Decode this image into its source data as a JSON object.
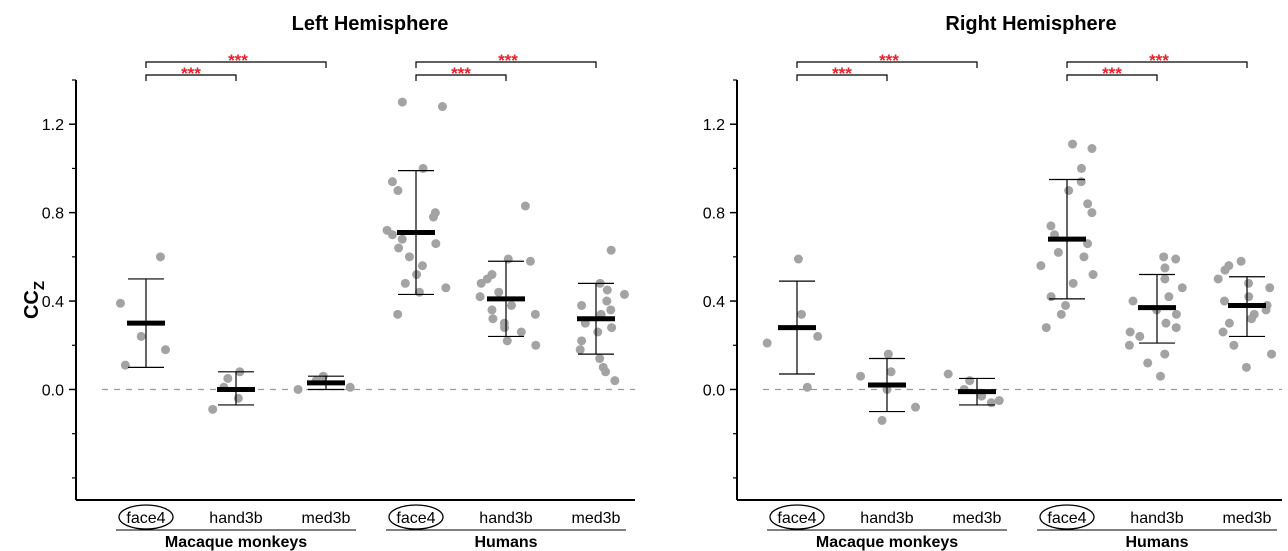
{
  "ylabel_main": "CC",
  "ylabel_sub": "Z",
  "significance_label": "***",
  "colors": {
    "dots": "#a3a3a3",
    "mean": "#000000",
    "stars": "#e8202a",
    "zero_line": "#9a9a9a"
  },
  "chart_data": [
    {
      "type": "scatter",
      "title": "Left Hemisphere",
      "ylim": [
        -0.5,
        1.4
      ],
      "yticks": [
        "0.0",
        "0.4",
        "0.8",
        "1.2"
      ],
      "ytick_values": [
        0.0,
        0.4,
        0.8,
        1.2
      ],
      "groups": [
        "Macaque monkeys",
        "Humans"
      ],
      "categories": [
        "face4",
        "hand3b",
        "med3b",
        "face4",
        "hand3b",
        "med3b"
      ],
      "circled": [
        true,
        false,
        false,
        true,
        false,
        false
      ],
      "means": [
        0.3,
        0.0,
        0.03,
        0.71,
        0.41,
        0.32
      ],
      "sd_upper": [
        0.5,
        0.08,
        0.06,
        0.99,
        0.58,
        0.48
      ],
      "sd_lower": [
        0.1,
        -0.07,
        0.0,
        0.43,
        0.24,
        0.16
      ],
      "points": [
        [
          0.6,
          0.39,
          0.24,
          0.18,
          0.11
        ],
        [
          0.08,
          0.05,
          0.01,
          -0.04,
          -0.09
        ],
        [
          0.06,
          0.04,
          0.01,
          0.0
        ],
        [
          1.3,
          1.28,
          1.0,
          0.94,
          0.9,
          0.8,
          0.78,
          0.72,
          0.7,
          0.68,
          0.66,
          0.64,
          0.6,
          0.56,
          0.52,
          0.48,
          0.46,
          0.44,
          0.34
        ],
        [
          0.83,
          0.59,
          0.58,
          0.52,
          0.5,
          0.48,
          0.44,
          0.42,
          0.38,
          0.36,
          0.34,
          0.32,
          0.3,
          0.28,
          0.26,
          0.22,
          0.2
        ],
        [
          0.63,
          0.48,
          0.45,
          0.43,
          0.4,
          0.38,
          0.36,
          0.34,
          0.3,
          0.28,
          0.26,
          0.22,
          0.18,
          0.14,
          0.1,
          0.08,
          0.04
        ]
      ],
      "comparisons": [
        {
          "from": 0,
          "to": 1,
          "label": "***"
        },
        {
          "from": 0,
          "to": 2,
          "label": "***"
        },
        {
          "from": 3,
          "to": 4,
          "label": "***"
        },
        {
          "from": 3,
          "to": 5,
          "label": "***"
        }
      ]
    },
    {
      "type": "scatter",
      "title": "Right Hemisphere",
      "ylim": [
        -0.5,
        1.4
      ],
      "yticks": [
        "0.0",
        "0.4",
        "0.8",
        "1.2"
      ],
      "ytick_values": [
        0.0,
        0.4,
        0.8,
        1.2
      ],
      "groups": [
        "Macaque monkeys",
        "Humans"
      ],
      "categories": [
        "face4",
        "hand3b",
        "med3b",
        "face4",
        "hand3b",
        "med3b"
      ],
      "circled": [
        true,
        false,
        false,
        true,
        false,
        false
      ],
      "means": [
        0.28,
        0.02,
        -0.01,
        0.68,
        0.37,
        0.38
      ],
      "sd_upper": [
        0.49,
        0.14,
        0.05,
        0.95,
        0.52,
        0.51
      ],
      "sd_lower": [
        0.07,
        -0.1,
        -0.07,
        0.41,
        0.21,
        0.24
      ],
      "points": [
        [
          0.59,
          0.34,
          0.24,
          0.21,
          0.01
        ],
        [
          0.16,
          0.08,
          0.06,
          0.0,
          -0.08,
          -0.14
        ],
        [
          0.07,
          0.04,
          0.0,
          -0.03,
          -0.05,
          -0.06
        ],
        [
          1.11,
          1.09,
          1.0,
          0.94,
          0.9,
          0.84,
          0.8,
          0.74,
          0.7,
          0.66,
          0.62,
          0.6,
          0.56,
          0.52,
          0.48,
          0.42,
          0.38,
          0.34,
          0.28
        ],
        [
          0.6,
          0.59,
          0.55,
          0.5,
          0.46,
          0.42,
          0.4,
          0.36,
          0.34,
          0.3,
          0.28,
          0.26,
          0.24,
          0.2,
          0.16,
          0.12,
          0.06
        ],
        [
          0.58,
          0.56,
          0.54,
          0.5,
          0.48,
          0.46,
          0.42,
          0.4,
          0.38,
          0.36,
          0.34,
          0.32,
          0.3,
          0.26,
          0.2,
          0.16,
          0.1
        ]
      ],
      "comparisons": [
        {
          "from": 0,
          "to": 1,
          "label": "***"
        },
        {
          "from": 0,
          "to": 2,
          "label": "***"
        },
        {
          "from": 3,
          "to": 4,
          "label": "***"
        },
        {
          "from": 3,
          "to": 5,
          "label": "***"
        }
      ]
    }
  ]
}
